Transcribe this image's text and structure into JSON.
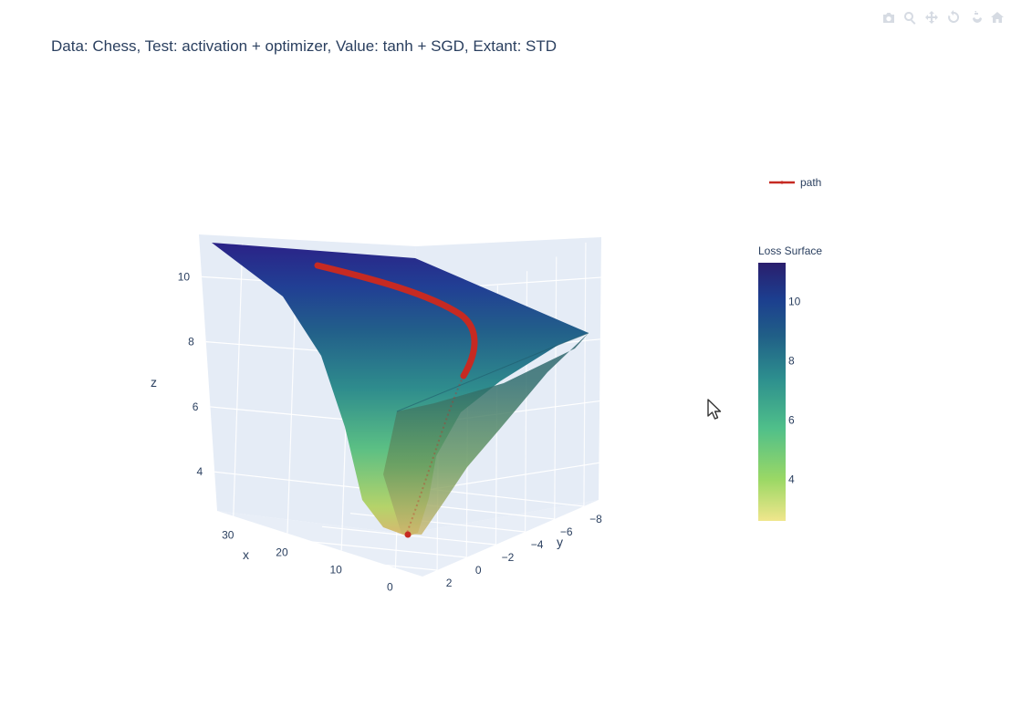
{
  "modebar": {
    "buttons": [
      {
        "name": "camera-icon",
        "title": "Download plot as a png"
      },
      {
        "name": "zoom-icon",
        "title": "Zoom"
      },
      {
        "name": "pan-icon",
        "title": "Pan"
      },
      {
        "name": "orbit-rotation-icon",
        "title": "Orbital rotation"
      },
      {
        "name": "turntable-rotation-icon",
        "title": "Turntable rotation"
      },
      {
        "name": "home-icon",
        "title": "Reset camera to default"
      }
    ],
    "color": "#8c9bb0"
  },
  "chart_data": {
    "type": "surface",
    "title": "Data: Chess, Test: activation + optimizer, Value: tanh + SGD, Extant: STD",
    "xlabel": "x",
    "ylabel": "y",
    "zlabel": "z",
    "x_ticks": [
      30,
      20,
      10,
      0
    ],
    "y_ticks": [
      -8,
      -6,
      -4,
      -2,
      0,
      2
    ],
    "z_ticks": [
      4,
      6,
      8,
      10
    ],
    "xlim": [
      -5,
      33
    ],
    "ylim": [
      -9,
      3
    ],
    "zlim": [
      2.8,
      11.3
    ],
    "grid": true,
    "colorbar": {
      "title": "Loss Surface",
      "range": [
        2.6,
        11.3
      ],
      "ticks": [
        4,
        6,
        8,
        10
      ],
      "colorscale": [
        "#f0e68c",
        "#9bd865",
        "#4fbf8a",
        "#2d8f8e",
        "#205e87",
        "#1c3e8f",
        "#2a1e6d"
      ]
    },
    "series": [
      {
        "name": "Loss Surface",
        "kind": "surface"
      },
      {
        "name": "path",
        "kind": "line",
        "color": "#c62a22"
      }
    ],
    "legend": {
      "position": "top-right",
      "entries": [
        "path"
      ]
    }
  }
}
